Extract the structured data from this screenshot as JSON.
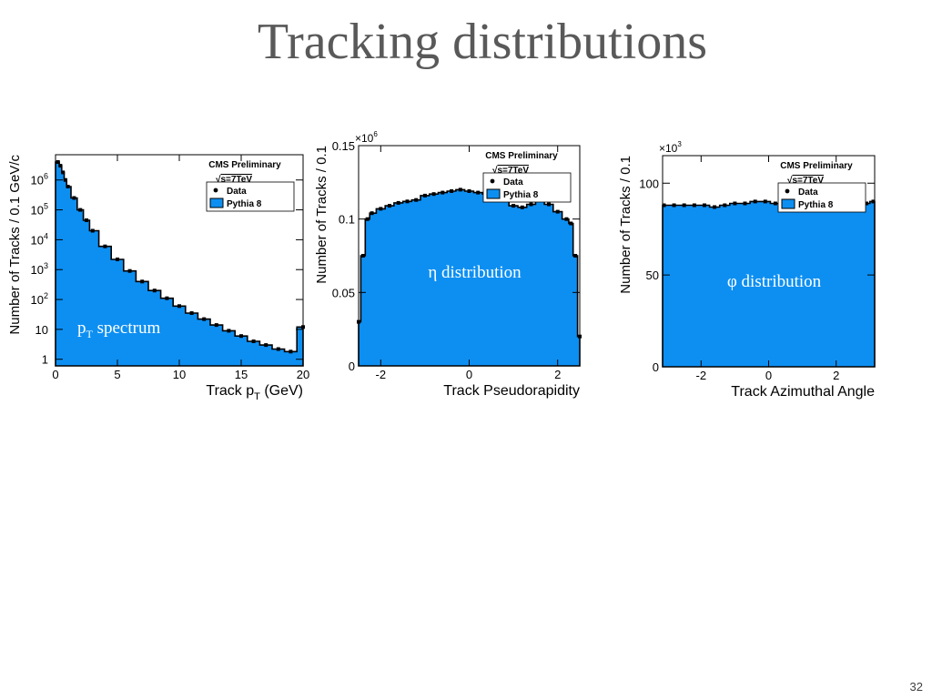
{
  "slide": {
    "title": "Tracking distributions",
    "page_number": "32"
  },
  "colors": {
    "mc_fill": "#0d8ff2",
    "data_marker": "#000000",
    "title_text": "#595959",
    "overlay_text": "#ffffff"
  },
  "chart_data": [
    {
      "id": "pt",
      "type": "area",
      "log_y": true,
      "annotation": "spectrum",
      "annotation_symbol": "p",
      "annotation_sub": "T",
      "header": "CMS Preliminary",
      "energy": "s=7TeV",
      "legend": [
        "Data",
        "Pythia 8"
      ],
      "legend_position": "top-right",
      "xlabel": "Track p",
      "xlabel_sub": "T",
      "xlabel_unit": "(GeV)",
      "ylabel": "Number of Tracks / 0.1 GeV/c",
      "xlim": [
        0,
        20
      ],
      "ylim": [
        0.6,
        7000000
      ],
      "x_ticks": [
        "0",
        "5",
        "10",
        "15",
        "20"
      ],
      "y_ticks": [
        {
          "value": 1,
          "base": "1",
          "exp": ""
        },
        {
          "value": 10,
          "base": "10",
          "exp": ""
        },
        {
          "value": 100,
          "base": "10",
          "exp": "2"
        },
        {
          "value": 1000,
          "base": "10",
          "exp": "3"
        },
        {
          "value": 10000,
          "base": "10",
          "exp": "4"
        },
        {
          "value": 100000,
          "base": "10",
          "exp": "5"
        },
        {
          "value": 1000000,
          "base": "10",
          "exp": "6"
        }
      ],
      "series": [
        {
          "name": "Pythia 8",
          "x": [
            0.2,
            0.4,
            0.6,
            0.8,
            1,
            1.5,
            2,
            2.5,
            3,
            4,
            5,
            6,
            7,
            8,
            9,
            10,
            11,
            12,
            13,
            14,
            15,
            16,
            17,
            18,
            19,
            20
          ],
          "y": [
            4000000,
            3000000,
            1800000,
            1000000,
            600000,
            250000,
            100000,
            45000,
            20000,
            6000,
            2200,
            900,
            400,
            200,
            110,
            60,
            35,
            22,
            14,
            9,
            6,
            4,
            3,
            2.2,
            1.8,
            12
          ]
        },
        {
          "name": "Data",
          "x": [
            0.2,
            0.4,
            0.6,
            0.8,
            1,
            1.5,
            2,
            2.5,
            3,
            4,
            5,
            6,
            7,
            8,
            9,
            10,
            11,
            12,
            13,
            14,
            15,
            16,
            17,
            18,
            19,
            20
          ],
          "y": [
            4000000,
            3000000,
            1800000,
            1000000,
            600000,
            250000,
            100000,
            45000,
            20000,
            6000,
            2200,
            900,
            400,
            200,
            110,
            60,
            35,
            22,
            14,
            9,
            6,
            4,
            3,
            2.2,
            1.8,
            12
          ]
        }
      ]
    },
    {
      "id": "eta",
      "type": "area",
      "log_y": false,
      "annotation": "η distribution",
      "header": "CMS Preliminary",
      "energy": "s=7TeV",
      "legend": [
        "Data",
        "Pythia 8"
      ],
      "legend_position": "top-right",
      "xlabel": "Track Pseudorapidity",
      "ylabel": "Number of Tracks / 0.1",
      "multiplier": "×10",
      "multiplier_exp": "6",
      "xlim": [
        -2.5,
        2.5
      ],
      "ylim": [
        0,
        0.15
      ],
      "x_ticks": [
        "-2",
        "0",
        "2"
      ],
      "y_ticks": [
        {
          "value": 0,
          "label": "0"
        },
        {
          "value": 0.05,
          "label": "0.05"
        },
        {
          "value": 0.1,
          "label": "0.1"
        },
        {
          "value": 0.15,
          "label": "0.15"
        }
      ],
      "series": [
        {
          "name": "Pythia 8",
          "x": [
            -2.5,
            -2.4,
            -2.3,
            -2.2,
            -2,
            -1.8,
            -1.6,
            -1.4,
            -1.2,
            -1,
            -0.8,
            -0.6,
            -0.4,
            -0.2,
            0,
            0.2,
            0.4,
            0.6,
            0.8,
            1,
            1.2,
            1.4,
            1.6,
            1.8,
            2,
            2.2,
            2.3,
            2.4,
            2.5
          ],
          "y": [
            0.03,
            0.075,
            0.1,
            0.104,
            0.107,
            0.109,
            0.111,
            0.112,
            0.113,
            0.116,
            0.117,
            0.118,
            0.119,
            0.12,
            0.119,
            0.118,
            0.117,
            0.116,
            0.113,
            0.109,
            0.108,
            0.11,
            0.115,
            0.11,
            0.105,
            0.1,
            0.097,
            0.075,
            0.02
          ]
        },
        {
          "name": "Data",
          "x": [
            -2.5,
            -2.4,
            -2.3,
            -2.2,
            -2,
            -1.8,
            -1.6,
            -1.4,
            -1.2,
            -1,
            -0.8,
            -0.6,
            -0.4,
            -0.2,
            0,
            0.2,
            0.4,
            0.6,
            0.8,
            1,
            1.2,
            1.4,
            1.6,
            1.8,
            2,
            2.2,
            2.3,
            2.4,
            2.5
          ],
          "y": [
            0.03,
            0.075,
            0.1,
            0.104,
            0.107,
            0.109,
            0.111,
            0.112,
            0.113,
            0.116,
            0.117,
            0.118,
            0.119,
            0.12,
            0.119,
            0.118,
            0.117,
            0.116,
            0.113,
            0.109,
            0.108,
            0.11,
            0.115,
            0.11,
            0.105,
            0.1,
            0.097,
            0.075,
            0.02
          ]
        }
      ]
    },
    {
      "id": "phi",
      "type": "area",
      "log_y": false,
      "annotation": "φ distribution",
      "header": "CMS Preliminary",
      "energy": "s=7TeV",
      "legend": [
        "Data",
        "Pythia 8"
      ],
      "legend_position": "top-right",
      "xlabel": "Track Azimuthal Angle",
      "ylabel": "Number of Tracks / 0.1",
      "multiplier": "×10",
      "multiplier_exp": "3",
      "xlim": [
        -3.14,
        3.14
      ],
      "ylim": [
        0,
        115
      ],
      "x_ticks": [
        "-2",
        "0",
        "2"
      ],
      "y_ticks": [
        {
          "value": 0,
          "label": "0"
        },
        {
          "value": 50,
          "label": "50"
        },
        {
          "value": 100,
          "label": "100"
        }
      ],
      "series": [
        {
          "name": "Pythia 8",
          "x": [
            -3.1,
            -2.8,
            -2.5,
            -2.2,
            -1.9,
            -1.6,
            -1.3,
            -1,
            -0.7,
            -0.4,
            -0.1,
            0.2,
            0.5,
            0.8,
            1.1,
            1.4,
            1.7,
            2,
            2.3,
            2.6,
            2.9,
            3.1
          ],
          "y": [
            88,
            88,
            88,
            88,
            88,
            87,
            88,
            89,
            89,
            90,
            90,
            89,
            90,
            90,
            89,
            90,
            89,
            90,
            89,
            90,
            89,
            90
          ]
        },
        {
          "name": "Data",
          "x": [
            -3.1,
            -2.8,
            -2.5,
            -2.2,
            -1.9,
            -1.6,
            -1.3,
            -1,
            -0.7,
            -0.4,
            -0.1,
            0.2,
            0.5,
            0.8,
            1.1,
            1.4,
            1.7,
            2,
            2.3,
            2.6,
            2.9,
            3.1
          ],
          "y": [
            88,
            88,
            88,
            88,
            88,
            87,
            88,
            89,
            89,
            90,
            90,
            89,
            90,
            90,
            89,
            90,
            89,
            90,
            89,
            90,
            89,
            90
          ]
        }
      ]
    }
  ]
}
